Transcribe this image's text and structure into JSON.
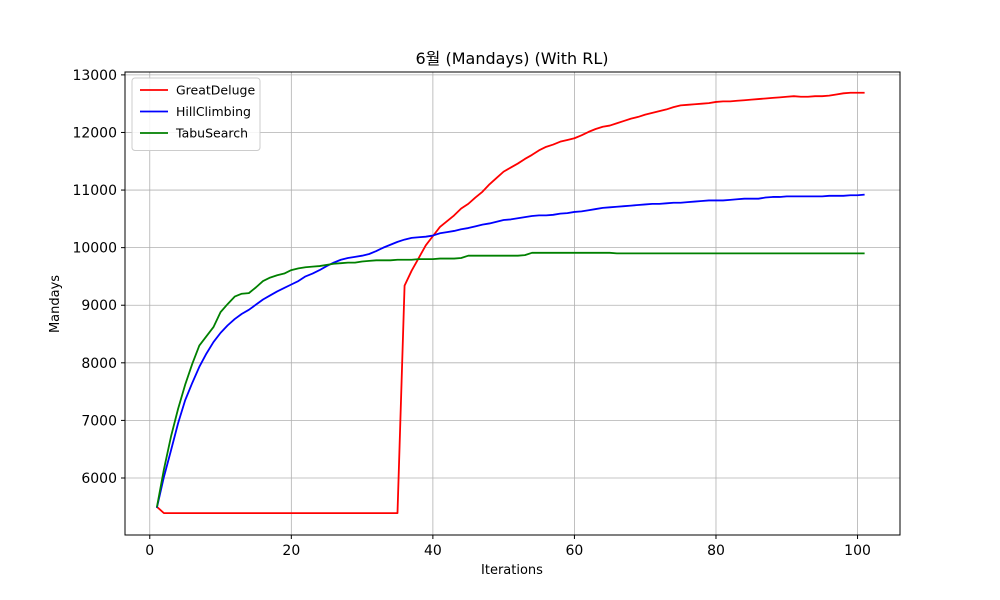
{
  "chart_data": {
    "type": "line",
    "title": "6월 (Mandays) (With RL)",
    "xlabel": "Iterations",
    "ylabel": "Mandays",
    "xlim": [
      -3.5,
      106
    ],
    "ylim": [
      5010,
      13050
    ],
    "xticks": [
      0,
      20,
      40,
      60,
      80,
      100
    ],
    "yticks": [
      6000,
      7000,
      8000,
      9000,
      10000,
      11000,
      12000,
      13000
    ],
    "grid": true,
    "legend_position": "top-left",
    "series": [
      {
        "name": "GreatDeluge",
        "color": "#ff0000",
        "points": [
          [
            1,
            5500
          ],
          [
            2,
            5390
          ],
          [
            10,
            5390
          ],
          [
            20,
            5390
          ],
          [
            30,
            5390
          ],
          [
            35,
            5390
          ],
          [
            36,
            9340
          ],
          [
            37,
            9600
          ],
          [
            38,
            9820
          ],
          [
            39,
            10040
          ],
          [
            40,
            10200
          ],
          [
            41,
            10360
          ],
          [
            42,
            10460
          ],
          [
            43,
            10560
          ],
          [
            44,
            10680
          ],
          [
            45,
            10760
          ],
          [
            46,
            10870
          ],
          [
            47,
            10970
          ],
          [
            48,
            11100
          ],
          [
            49,
            11210
          ],
          [
            50,
            11320
          ],
          [
            51,
            11390
          ],
          [
            52,
            11460
          ],
          [
            53,
            11540
          ],
          [
            54,
            11610
          ],
          [
            55,
            11690
          ],
          [
            56,
            11750
          ],
          [
            57,
            11790
          ],
          [
            58,
            11840
          ],
          [
            59,
            11870
          ],
          [
            60,
            11900
          ],
          [
            61,
            11950
          ],
          [
            62,
            12010
          ],
          [
            63,
            12060
          ],
          [
            64,
            12100
          ],
          [
            65,
            12120
          ],
          [
            66,
            12160
          ],
          [
            67,
            12200
          ],
          [
            68,
            12240
          ],
          [
            69,
            12270
          ],
          [
            70,
            12310
          ],
          [
            71,
            12340
          ],
          [
            72,
            12370
          ],
          [
            73,
            12400
          ],
          [
            74,
            12440
          ],
          [
            75,
            12470
          ],
          [
            76,
            12480
          ],
          [
            77,
            12490
          ],
          [
            78,
            12500
          ],
          [
            79,
            12510
          ],
          [
            80,
            12530
          ],
          [
            81,
            12540
          ],
          [
            82,
            12540
          ],
          [
            83,
            12550
          ],
          [
            84,
            12560
          ],
          [
            85,
            12570
          ],
          [
            86,
            12580
          ],
          [
            87,
            12590
          ],
          [
            88,
            12600
          ],
          [
            89,
            12610
          ],
          [
            90,
            12620
          ],
          [
            91,
            12630
          ],
          [
            92,
            12620
          ],
          [
            93,
            12620
          ],
          [
            94,
            12630
          ],
          [
            95,
            12630
          ],
          [
            96,
            12640
          ],
          [
            97,
            12660
          ],
          [
            98,
            12680
          ],
          [
            99,
            12690
          ],
          [
            100,
            12690
          ],
          [
            101,
            12690
          ]
        ]
      },
      {
        "name": "HillClimbing",
        "color": "#0000ff",
        "points": [
          [
            1,
            5480
          ],
          [
            2,
            6020
          ],
          [
            3,
            6480
          ],
          [
            4,
            6950
          ],
          [
            5,
            7350
          ],
          [
            6,
            7650
          ],
          [
            7,
            7930
          ],
          [
            8,
            8160
          ],
          [
            9,
            8360
          ],
          [
            10,
            8520
          ],
          [
            11,
            8650
          ],
          [
            12,
            8760
          ],
          [
            13,
            8850
          ],
          [
            14,
            8920
          ],
          [
            15,
            9010
          ],
          [
            16,
            9100
          ],
          [
            17,
            9170
          ],
          [
            18,
            9240
          ],
          [
            19,
            9300
          ],
          [
            20,
            9360
          ],
          [
            21,
            9420
          ],
          [
            22,
            9500
          ],
          [
            23,
            9550
          ],
          [
            24,
            9610
          ],
          [
            25,
            9680
          ],
          [
            26,
            9740
          ],
          [
            27,
            9790
          ],
          [
            28,
            9820
          ],
          [
            29,
            9840
          ],
          [
            30,
            9860
          ],
          [
            31,
            9890
          ],
          [
            32,
            9940
          ],
          [
            33,
            10000
          ],
          [
            34,
            10050
          ],
          [
            35,
            10100
          ],
          [
            36,
            10140
          ],
          [
            37,
            10170
          ],
          [
            38,
            10180
          ],
          [
            39,
            10190
          ],
          [
            40,
            10210
          ],
          [
            41,
            10250
          ],
          [
            42,
            10270
          ],
          [
            43,
            10290
          ],
          [
            44,
            10320
          ],
          [
            45,
            10340
          ],
          [
            46,
            10370
          ],
          [
            47,
            10400
          ],
          [
            48,
            10420
          ],
          [
            49,
            10450
          ],
          [
            50,
            10480
          ],
          [
            51,
            10490
          ],
          [
            52,
            10510
          ],
          [
            53,
            10530
          ],
          [
            54,
            10550
          ],
          [
            55,
            10560
          ],
          [
            56,
            10560
          ],
          [
            57,
            10570
          ],
          [
            58,
            10590
          ],
          [
            59,
            10600
          ],
          [
            60,
            10620
          ],
          [
            61,
            10630
          ],
          [
            62,
            10650
          ],
          [
            63,
            10670
          ],
          [
            64,
            10690
          ],
          [
            65,
            10700
          ],
          [
            66,
            10710
          ],
          [
            67,
            10720
          ],
          [
            68,
            10730
          ],
          [
            69,
            10740
          ],
          [
            70,
            10750
          ],
          [
            71,
            10760
          ],
          [
            72,
            10760
          ],
          [
            73,
            10770
          ],
          [
            74,
            10780
          ],
          [
            75,
            10780
          ],
          [
            76,
            10790
          ],
          [
            77,
            10800
          ],
          [
            78,
            10810
          ],
          [
            79,
            10820
          ],
          [
            80,
            10820
          ],
          [
            81,
            10820
          ],
          [
            82,
            10830
          ],
          [
            83,
            10840
          ],
          [
            84,
            10850
          ],
          [
            85,
            10850
          ],
          [
            86,
            10850
          ],
          [
            87,
            10870
          ],
          [
            88,
            10880
          ],
          [
            89,
            10880
          ],
          [
            90,
            10890
          ],
          [
            91,
            10890
          ],
          [
            92,
            10890
          ],
          [
            93,
            10890
          ],
          [
            94,
            10890
          ],
          [
            95,
            10890
          ],
          [
            96,
            10900
          ],
          [
            97,
            10900
          ],
          [
            98,
            10900
          ],
          [
            99,
            10910
          ],
          [
            100,
            10910
          ],
          [
            101,
            10920
          ]
        ]
      },
      {
        "name": "TabuSearch",
        "color": "#008000",
        "points": [
          [
            1,
            5490
          ],
          [
            2,
            6150
          ],
          [
            3,
            6720
          ],
          [
            4,
            7200
          ],
          [
            5,
            7620
          ],
          [
            6,
            7980
          ],
          [
            7,
            8300
          ],
          [
            8,
            8460
          ],
          [
            9,
            8620
          ],
          [
            10,
            8880
          ],
          [
            11,
            9020
          ],
          [
            12,
            9150
          ],
          [
            13,
            9200
          ],
          [
            14,
            9210
          ],
          [
            15,
            9310
          ],
          [
            16,
            9420
          ],
          [
            17,
            9480
          ],
          [
            18,
            9520
          ],
          [
            19,
            9550
          ],
          [
            20,
            9610
          ],
          [
            21,
            9640
          ],
          [
            22,
            9660
          ],
          [
            23,
            9670
          ],
          [
            24,
            9680
          ],
          [
            25,
            9700
          ],
          [
            26,
            9720
          ],
          [
            27,
            9730
          ],
          [
            28,
            9740
          ],
          [
            29,
            9740
          ],
          [
            30,
            9760
          ],
          [
            31,
            9770
          ],
          [
            32,
            9780
          ],
          [
            33,
            9780
          ],
          [
            34,
            9780
          ],
          [
            35,
            9790
          ],
          [
            36,
            9790
          ],
          [
            37,
            9790
          ],
          [
            38,
            9800
          ],
          [
            39,
            9800
          ],
          [
            40,
            9800
          ],
          [
            41,
            9810
          ],
          [
            42,
            9810
          ],
          [
            43,
            9810
          ],
          [
            44,
            9820
          ],
          [
            45,
            9860
          ],
          [
            46,
            9860
          ],
          [
            47,
            9860
          ],
          [
            48,
            9860
          ],
          [
            49,
            9860
          ],
          [
            50,
            9860
          ],
          [
            51,
            9860
          ],
          [
            52,
            9860
          ],
          [
            53,
            9870
          ],
          [
            54,
            9910
          ],
          [
            55,
            9910
          ],
          [
            56,
            9910
          ],
          [
            57,
            9910
          ],
          [
            58,
            9910
          ],
          [
            59,
            9910
          ],
          [
            60,
            9910
          ],
          [
            61,
            9910
          ],
          [
            62,
            9910
          ],
          [
            63,
            9910
          ],
          [
            64,
            9910
          ],
          [
            65,
            9910
          ],
          [
            66,
            9900
          ],
          [
            67,
            9900
          ],
          [
            70,
            9900
          ],
          [
            80,
            9900
          ],
          [
            90,
            9900
          ],
          [
            100,
            9900
          ],
          [
            101,
            9900
          ]
        ]
      }
    ]
  }
}
